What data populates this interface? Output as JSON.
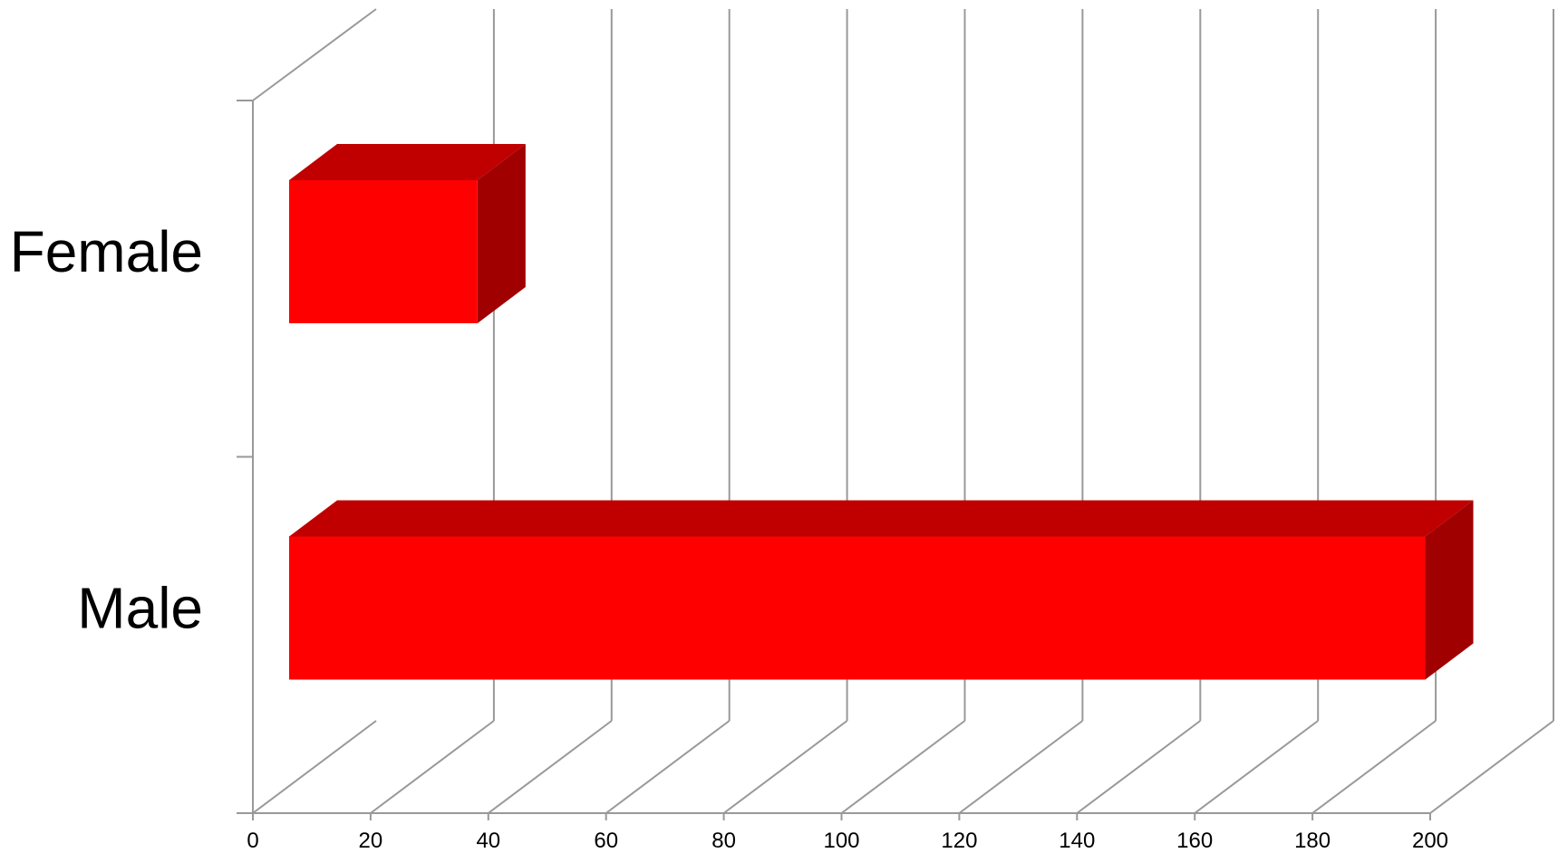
{
  "chart_data": {
    "type": "bar",
    "orientation": "horizontal",
    "style": "3d",
    "categories": [
      "Female",
      "Male"
    ],
    "series": [
      {
        "values": [
          32,
          193
        ]
      }
    ],
    "xlim": [
      0,
      200
    ],
    "xticks": [
      "0",
      "20",
      "40",
      "60",
      "80",
      "100",
      "120",
      "140",
      "160",
      "180",
      "200"
    ],
    "grid": true,
    "legend": "none",
    "colors": {
      "bar_front": "#ff0000",
      "bar_top": "#c00000",
      "bar_side": "#a00000",
      "grid": "#999999"
    }
  }
}
